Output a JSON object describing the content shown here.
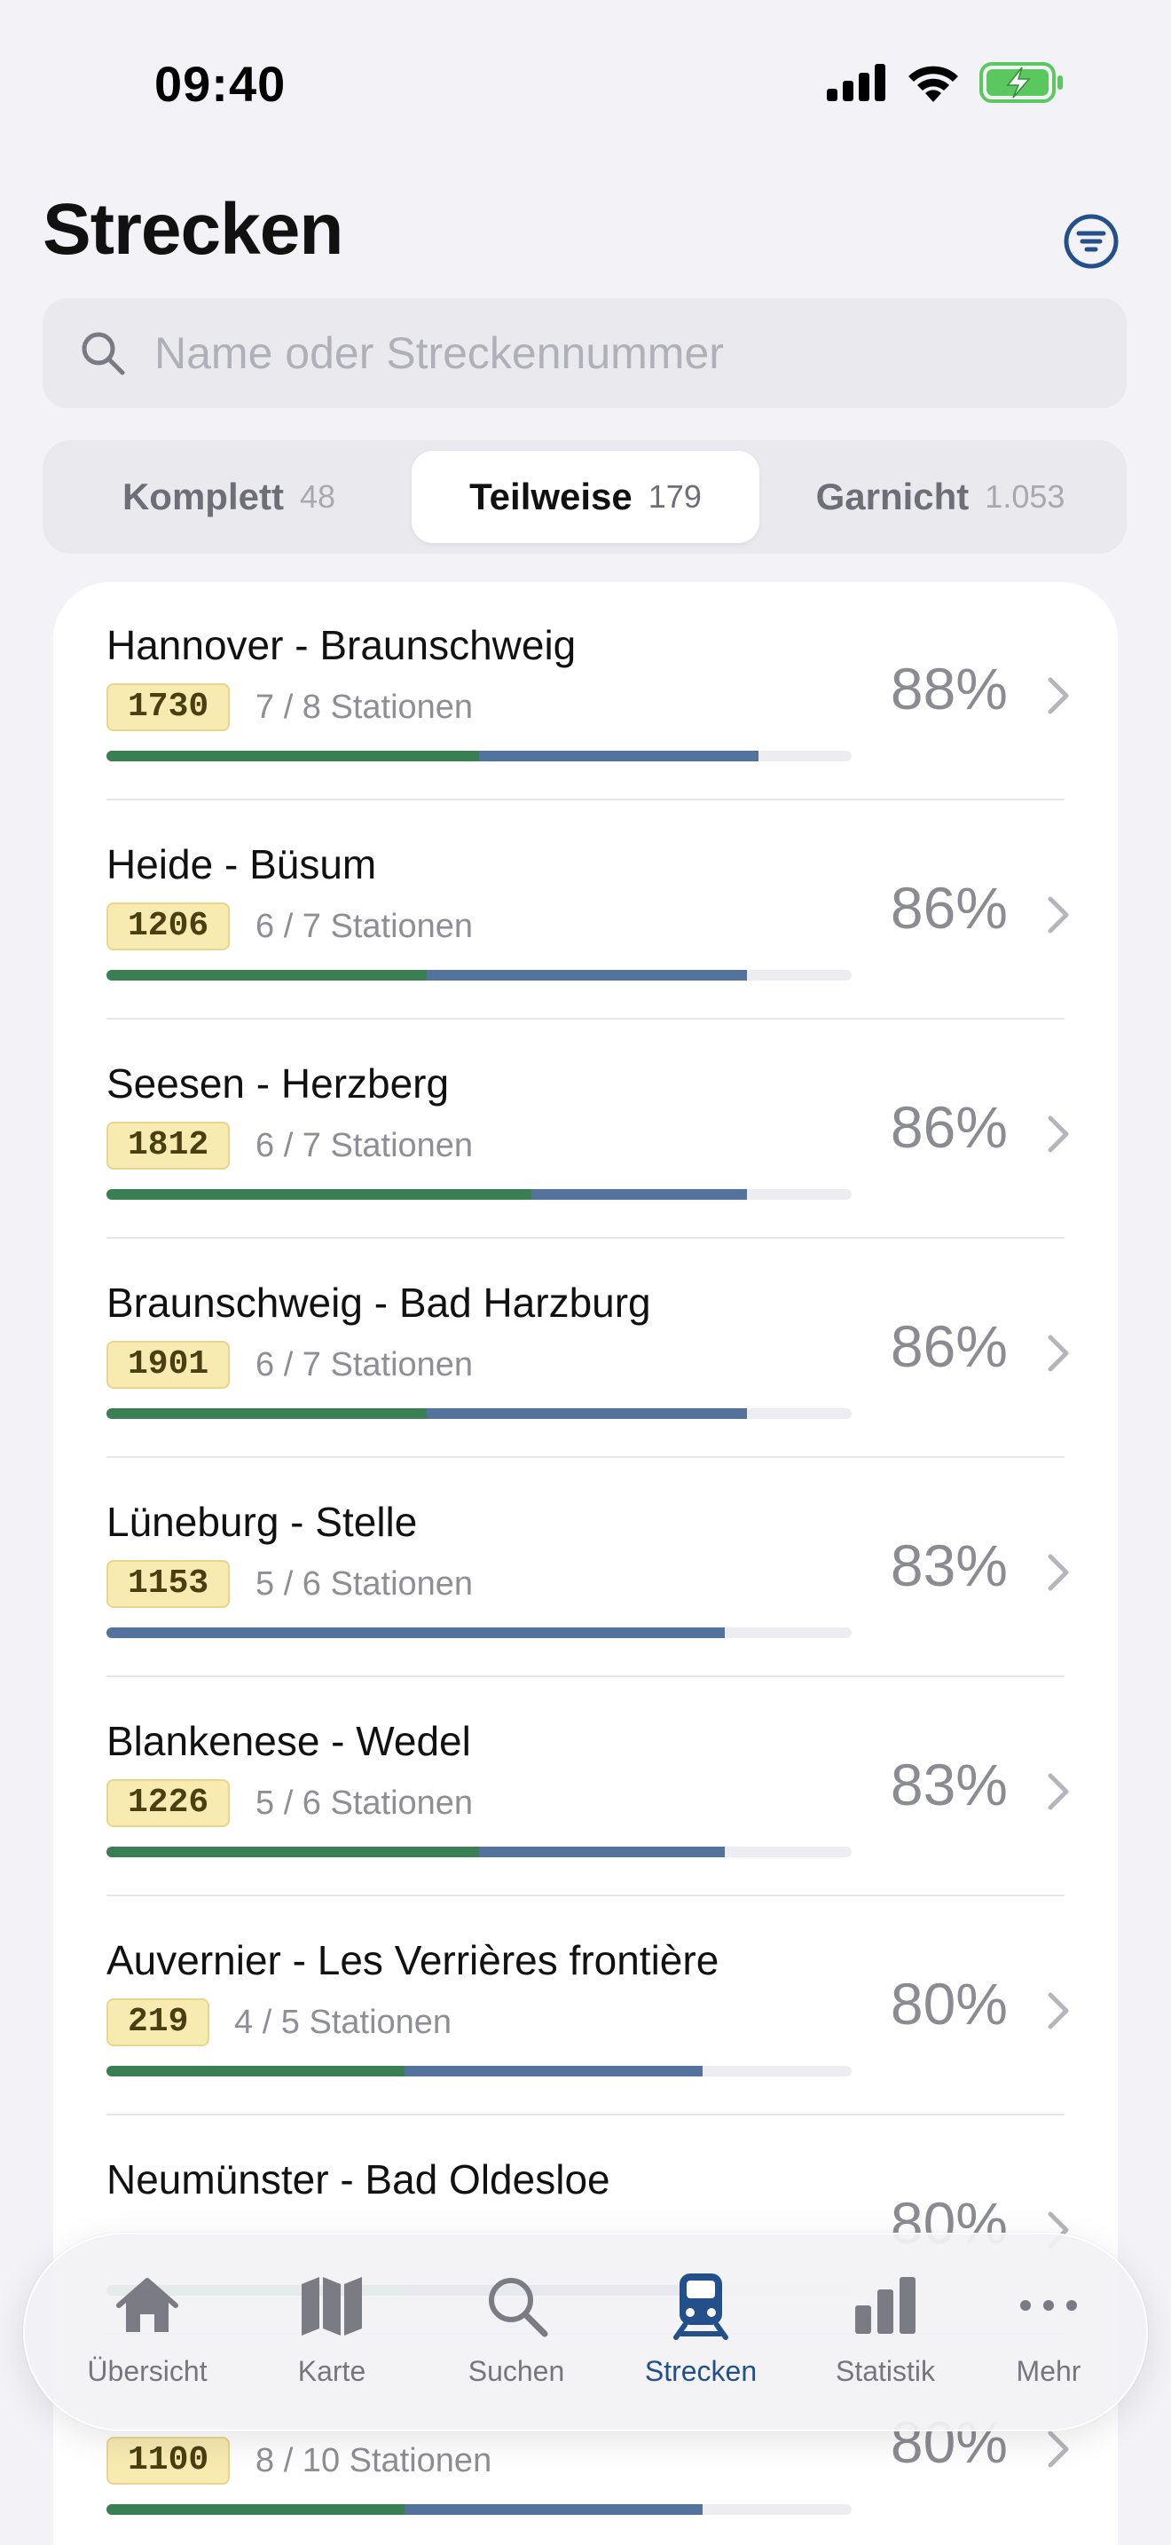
{
  "status": {
    "time": "09:40"
  },
  "header": {
    "title": "Strecken"
  },
  "search": {
    "placeholder": "Name oder Streckennummer"
  },
  "segments": [
    {
      "label": "Komplett",
      "count": "48"
    },
    {
      "label": "Teilweise",
      "count": "179",
      "active": true
    },
    {
      "label": "Garnicht",
      "count": "1.053"
    }
  ],
  "routes": [
    {
      "name": "Hannover - Braunschweig",
      "number": "1730",
      "stations": "7 / 8 Stationen",
      "percent": "88%",
      "green": 0.5,
      "blue": 0.375
    },
    {
      "name": "Heide - Büsum",
      "number": "1206",
      "stations": "6 / 7 Stationen",
      "percent": "86%",
      "green": 0.43,
      "blue": 0.43
    },
    {
      "name": "Seesen - Herzberg",
      "number": "1812",
      "stations": "6 / 7 Stationen",
      "percent": "86%",
      "green": 0.57,
      "blue": 0.29
    },
    {
      "name": "Braunschweig - Bad Harzburg",
      "number": "1901",
      "stations": "6 / 7 Stationen",
      "percent": "86%",
      "green": 0.43,
      "blue": 0.43
    },
    {
      "name": "Lüneburg - Stelle",
      "number": "1153",
      "stations": "5 / 6 Stationen",
      "percent": "83%",
      "green": 0.0,
      "blue": 0.83
    },
    {
      "name": "Blankenese - Wedel",
      "number": "1226",
      "stations": "5 / 6 Stationen",
      "percent": "83%",
      "green": 0.5,
      "blue": 0.33
    },
    {
      "name": "Auvernier - Les Verrières frontière",
      "number": "219",
      "stations": "4 / 5 Stationen",
      "percent": "80%",
      "green": 0.4,
      "blue": 0.4
    },
    {
      "name": "Neumünster - Bad Oldesloe",
      "number": "",
      "stations": "",
      "percent": "80%",
      "green": 0.4,
      "blue": 0.4
    },
    {
      "name": "",
      "number": "1100",
      "stations": "8 / 10 Stationen",
      "percent": "80%",
      "green": 0.4,
      "blue": 0.4
    }
  ],
  "tabs": [
    {
      "label": "Übersicht",
      "icon": "house-icon"
    },
    {
      "label": "Karte",
      "icon": "map-icon"
    },
    {
      "label": "Suchen",
      "icon": "search-icon"
    },
    {
      "label": "Strecken",
      "icon": "train-icon",
      "active": true
    },
    {
      "label": "Statistik",
      "icon": "chart-icon"
    },
    {
      "label": "Mehr",
      "icon": "more-icon"
    }
  ],
  "colors": {
    "accent": "#23508a",
    "green": "#3a7f53",
    "blue": "#53739c",
    "badge": "#f7ebb2"
  }
}
